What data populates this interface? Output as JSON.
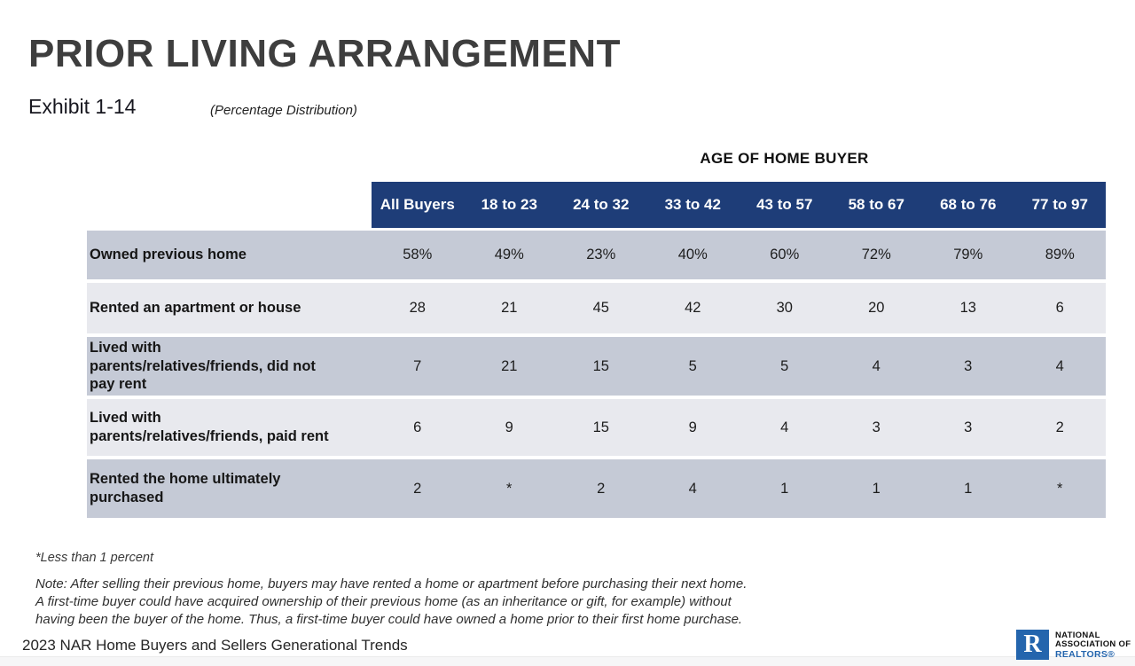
{
  "page": {
    "title": "PRIOR LIVING ARRANGEMENT",
    "exhibit": "Exhibit 1-14",
    "subtitle": "(Percentage Distribution)"
  },
  "table": {
    "group_header": "AGE OF HOME BUYER",
    "columns": [
      "All Buyers",
      "18 to 23",
      "24 to 32",
      "33 to 42",
      "43 to 57",
      "58 to 67",
      "68 to 76",
      "77 to 97"
    ],
    "rows": [
      {
        "label": "Owned previous home",
        "values": [
          "58%",
          "49%",
          "23%",
          "40%",
          "60%",
          "72%",
          "79%",
          "89%"
        ]
      },
      {
        "label": "Rented an apartment or house",
        "values": [
          "28",
          "21",
          "45",
          "42",
          "30",
          "20",
          "13",
          "6"
        ]
      },
      {
        "label": "Lived with\nparents/relatives/friends, did not\npay rent",
        "values": [
          "7",
          "21",
          "15",
          "5",
          "5",
          "4",
          "3",
          "4"
        ]
      },
      {
        "label": "Lived with\nparents/relatives/friends, paid rent",
        "values": [
          "6",
          "9",
          "15",
          "9",
          "4",
          "3",
          "3",
          "2"
        ]
      },
      {
        "label": "Rented the home ultimately\npurchased",
        "values": [
          "2",
          "*",
          "2",
          "4",
          "1",
          "1",
          "1",
          "*"
        ]
      }
    ]
  },
  "notes": {
    "asterisk": "*Less than 1 percent",
    "note": "Note: After selling their previous home, buyers may have rented a home or apartment before purchasing their next home.\nA first-time buyer could have acquired ownership of their previous home (as an inheritance or gift, for example) without\nhaving been the buyer of the home. Thus, a first-time buyer could have owned a home prior to their first home purchase."
  },
  "footer": {
    "source": "2023 NAR Home Buyers and Sellers Generational Trends",
    "logo": {
      "letter": "R",
      "line1": "NATIONAL",
      "line2": "ASSOCIATION OF",
      "line3": "REALTORS®"
    }
  },
  "colors": {
    "header_navy": "#1e3d78",
    "row_dark": "#c5cad6",
    "row_light": "#e8e9ee",
    "title_gray": "#3e3e3e",
    "logo_blue": "#2465ad"
  },
  "chart_data": {
    "type": "table",
    "title": "PRIOR LIVING ARRANGEMENT (Percentage Distribution)",
    "group_header": "AGE OF HOME BUYER",
    "columns": [
      "All Buyers",
      "18 to 23",
      "24 to 32",
      "33 to 42",
      "43 to 57",
      "58 to 67",
      "68 to 76",
      "77 to 97"
    ],
    "series": [
      {
        "name": "Owned previous home",
        "values": [
          58,
          49,
          23,
          40,
          60,
          72,
          79,
          89
        ]
      },
      {
        "name": "Rented an apartment or house",
        "values": [
          28,
          21,
          45,
          42,
          30,
          20,
          13,
          6
        ]
      },
      {
        "name": "Lived with parents/relatives/friends, did not pay rent",
        "values": [
          7,
          21,
          15,
          5,
          5,
          4,
          3,
          4
        ]
      },
      {
        "name": "Lived with parents/relatives/friends, paid rent",
        "values": [
          6,
          9,
          15,
          9,
          4,
          3,
          3,
          2
        ]
      },
      {
        "name": "Rented the home ultimately purchased",
        "values": [
          2,
          "*",
          2,
          4,
          1,
          1,
          1,
          "*"
        ]
      }
    ],
    "footnote": "*Less than 1 percent"
  }
}
